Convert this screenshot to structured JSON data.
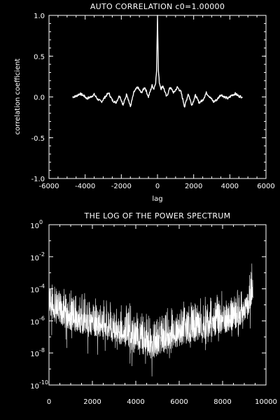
{
  "chart_data": [
    {
      "type": "line",
      "title": "AUTO CORRELATION c0=1.00000",
      "xlabel": "lag",
      "ylabel": "correlation coefficient",
      "xlim": [
        -6000,
        6000
      ],
      "ylim": [
        -1.0,
        1.0
      ],
      "x_ticks": [
        "-6000",
        "-4000",
        "-2000",
        "0",
        "2000",
        "4000",
        "6000"
      ],
      "y_ticks": [
        "-1.0",
        "-0.5",
        "0.0",
        "0.5",
        "1.0"
      ],
      "series": [
        {
          "x": [
            -4700,
            -4500,
            -4300,
            -4100,
            -3900,
            -3700,
            -3500,
            -3300,
            -3100,
            -2900,
            -2700,
            -2500,
            -2300,
            -2100,
            -1900,
            -1700,
            -1500,
            -1300,
            -1100,
            -900,
            -700,
            -500,
            -300,
            -200,
            -100,
            -50,
            0,
            50,
            100,
            200,
            300,
            500,
            700,
            900,
            1100,
            1300,
            1500,
            1700,
            1900,
            2100,
            2300,
            2500,
            2700,
            2900,
            3100,
            3300,
            3500,
            3700,
            3900,
            4100,
            4300,
            4500,
            4700
          ],
          "y": [
            0.0,
            0.01,
            0.04,
            0.02,
            -0.02,
            0.0,
            0.03,
            -0.03,
            -0.06,
            0.0,
            0.05,
            -0.04,
            -0.07,
            0.02,
            -0.1,
            0.04,
            -0.12,
            0.06,
            0.12,
            0.05,
            0.12,
            0.0,
            0.14,
            0.1,
            0.18,
            0.32,
            1.0,
            0.32,
            0.18,
            0.1,
            0.14,
            0.0,
            0.12,
            0.05,
            0.12,
            0.06,
            -0.12,
            0.04,
            -0.1,
            0.02,
            -0.07,
            -0.04,
            0.05,
            0.0,
            -0.06,
            -0.03,
            0.03,
            0.0,
            -0.02,
            0.02,
            0.04,
            0.01,
            0.0
          ]
        }
      ]
    },
    {
      "type": "line",
      "title": "THE LOG OF THE POWER SPECTRUM",
      "xlabel": "",
      "ylabel": "",
      "xlim": [
        0,
        10000
      ],
      "ylim_log10": [
        -10,
        0
      ],
      "log_y": true,
      "x_ticks": [
        "0",
        "2000",
        "4000",
        "6000",
        "8000",
        "10000"
      ],
      "y_ticks": [
        "10",
        "10",
        "10",
        "10",
        "10",
        "10"
      ],
      "y_tick_exponents": [
        "0",
        "-2",
        "-4",
        "-6",
        "-8",
        "-10"
      ],
      "series_envelope": {
        "x": [
          0,
          300,
          1000,
          2000,
          3000,
          4000,
          4700,
          5500,
          6500,
          7500,
          8500,
          9100,
          9400
        ],
        "upper_log10": [
          -3.3,
          -3.8,
          -4.0,
          -4.2,
          -4.6,
          -5.0,
          -5.4,
          -5.0,
          -4.6,
          -4.2,
          -4.0,
          -3.6,
          -2.0
        ],
        "lower_log10": [
          -5.6,
          -6.2,
          -6.6,
          -7.0,
          -7.4,
          -7.8,
          -8.4,
          -7.8,
          -7.4,
          -7.0,
          -6.6,
          -6.0,
          -4.8
        ]
      }
    }
  ]
}
